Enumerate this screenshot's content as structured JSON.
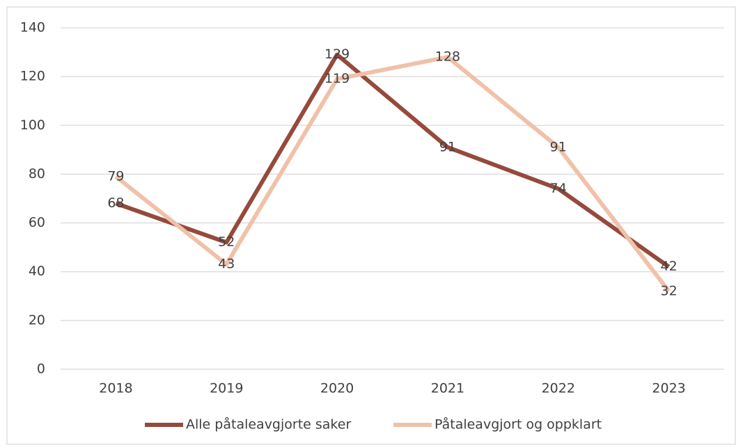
{
  "chart_data": {
    "type": "line",
    "categories": [
      "2018",
      "2019",
      "2020",
      "2021",
      "2022",
      "2023"
    ],
    "series": [
      {
        "name": "Alle påtaleavgjorte saker",
        "color": "#954a3c",
        "values": [
          68,
          52,
          129,
          91,
          74,
          42
        ]
      },
      {
        "name": "Påtaleavgjort og oppklart",
        "color": "#f0c1a9",
        "values": [
          79,
          43,
          119,
          128,
          91,
          32
        ]
      }
    ],
    "ylim": [
      0,
      140
    ],
    "yticks": [
      0,
      20,
      40,
      60,
      80,
      100,
      120,
      140
    ],
    "grid": true,
    "legend": "bottom"
  }
}
